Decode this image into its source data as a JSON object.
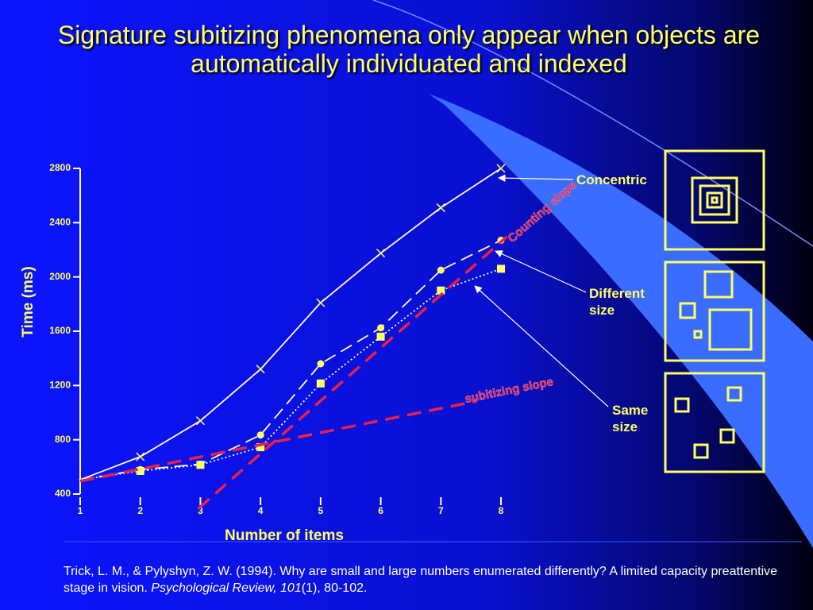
{
  "chart_data": {
    "type": "line",
    "title": "Signature subitizing phenomena only appear when objects are automatically individuated and indexed",
    "x_label": "Number of items",
    "y_label": "Time (ms)",
    "x": [
      1,
      2,
      3,
      4,
      5,
      6,
      7,
      8
    ],
    "xlim": [
      1,
      8
    ],
    "xticks": [
      1,
      2,
      3,
      4,
      5,
      6,
      7,
      8
    ],
    "ylim": [
      400,
      2800
    ],
    "yticks": [
      400,
      800,
      1200,
      1600,
      2000,
      2400,
      2800
    ],
    "series": [
      {
        "name": "Concentric",
        "color": "#ffff66",
        "marker": "x",
        "dash": "solid",
        "values": [
          505,
          675,
          940,
          1320,
          1810,
          2175,
          2510,
          2800
        ]
      },
      {
        "name": "Different size",
        "color": "#ffff66",
        "marker": "circle",
        "dash": "dashed",
        "values": [
          505,
          580,
          620,
          835,
          1360,
          1625,
          2050,
          2270
        ]
      },
      {
        "name": "Same size",
        "color": "#ffff66",
        "marker": "square",
        "dash": "dotted",
        "values": [
          505,
          570,
          615,
          745,
          1215,
          1560,
          1900,
          2060
        ]
      }
    ],
    "slopes": [
      {
        "label": "Counting slope",
        "color": "#e8204a",
        "x": [
          2.97,
          8.1
        ],
        "values": [
          295,
          2297
        ]
      },
      {
        "label": "subitizing slope",
        "color": "#e8204a",
        "x": [
          1,
          7.6
        ],
        "values": [
          495,
          1085
        ]
      }
    ],
    "citation": {
      "text": "Trick, L. M., & Pylyshyn, Z. W. (1994). Why are small and large numbers enumerated differently? A limited capacity preattentive stage in vision. ",
      "journal": "Psychological Review, 101",
      "rest": "(1), 80-102."
    }
  }
}
